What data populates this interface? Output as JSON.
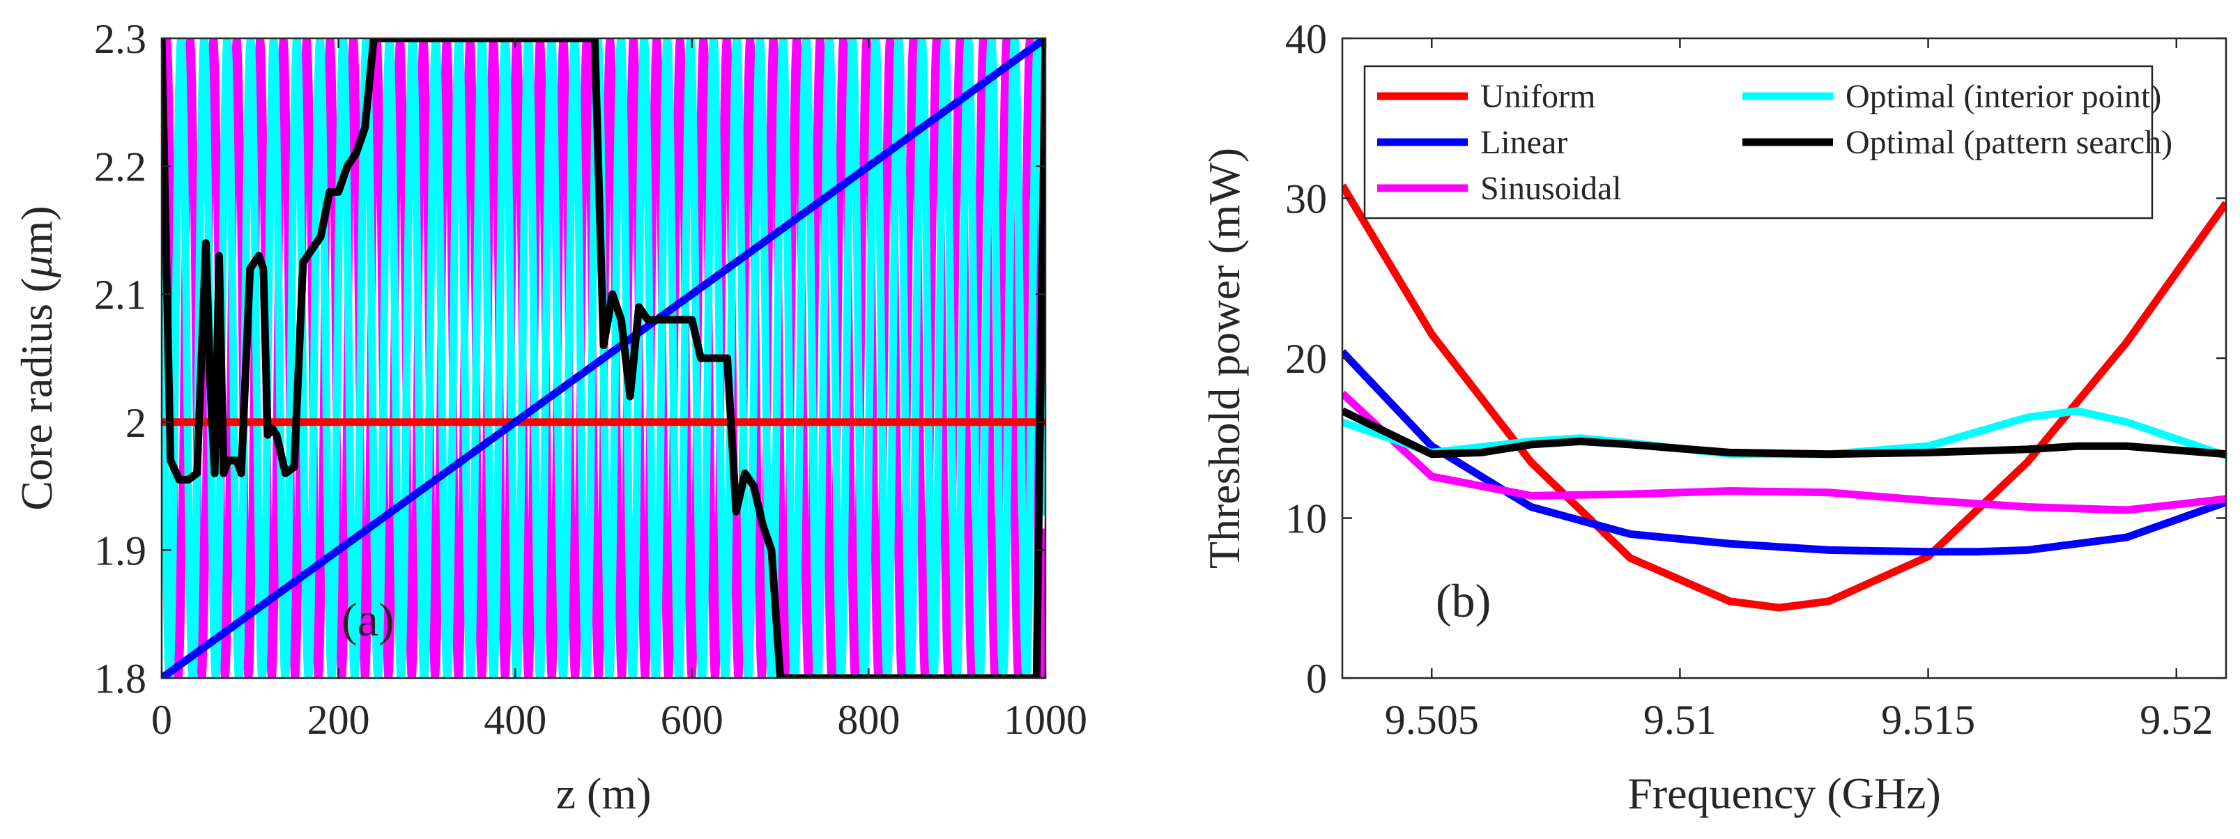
{
  "chart_data": [
    {
      "type": "line",
      "panel_label": "(a)",
      "title": "",
      "xlabel": "z (m)",
      "ylabel_text": "Core radius  (",
      "ylabel_symbol": "μ",
      "ylabel_unit": "m)",
      "xlim": [
        0,
        1000
      ],
      "ylim": [
        1.8,
        2.3
      ],
      "xticks": [
        0,
        200,
        400,
        600,
        800,
        1000
      ],
      "xtick_labels": [
        "0",
        "200",
        "400",
        "600",
        "800",
        "1000"
      ],
      "yticks": [
        1.8,
        1.9,
        2.0,
        2.1,
        2.2,
        2.3
      ],
      "ytick_labels": [
        "1.8",
        "1.9",
        "2",
        "2.1",
        "2.2",
        "2.3"
      ],
      "grid": false,
      "series": [
        {
          "name": "Uniform",
          "color": "#ff0000",
          "x": [
            0,
            1000
          ],
          "y": [
            2.0,
            2.0
          ]
        },
        {
          "name": "Linear",
          "color": "#0000ff",
          "x": [
            0,
            1000
          ],
          "y": [
            1.8,
            2.3
          ]
        },
        {
          "name": "Sinusoidal",
          "color": "#ff00ff",
          "function": "2.05 + 0.25*sin(2*pi*z/26.4 + 0.2)",
          "amplitude": 0.25,
          "offset": 2.05,
          "period": 26.4,
          "phase": 0.2,
          "domain": [
            0,
            1000
          ]
        },
        {
          "name": "Optimal (interior point)",
          "color": "#00ffff",
          "function": "2.05 + 0.25*sin(2*pi*z/26.2 + 2.6)",
          "amplitude": 0.25,
          "offset": 2.05,
          "period": 26.2,
          "phase": 2.6,
          "domain": [
            0,
            1000
          ]
        },
        {
          "name": "Optimal (pattern search)",
          "color": "#000000",
          "x": [
            0,
            10,
            20,
            30,
            40,
            50,
            55,
            60,
            65,
            70,
            75,
            80,
            85,
            90,
            100,
            110,
            115,
            120,
            125,
            130,
            140,
            150,
            160,
            170,
            180,
            190,
            200,
            210,
            220,
            225,
            230,
            240,
            245,
            250,
            255,
            260,
            300,
            350,
            400,
            450,
            490,
            500,
            510,
            520,
            530,
            540,
            550,
            560,
            600,
            610,
            620,
            630,
            640,
            650,
            660,
            670,
            680,
            690,
            700,
            710,
            750,
            800,
            850,
            900,
            950,
            990,
            1000
          ],
          "y": [
            2.3,
            1.97,
            1.955,
            1.955,
            1.96,
            2.14,
            2.03,
            1.96,
            2.13,
            1.96,
            1.97,
            1.97,
            1.97,
            1.96,
            2.12,
            2.13,
            2.12,
            1.99,
            1.995,
            1.99,
            1.96,
            1.965,
            2.125,
            2.135,
            2.145,
            2.18,
            2.18,
            2.2,
            2.21,
            2.22,
            2.23,
            2.3,
            2.3,
            2.3,
            2.3,
            2.3,
            2.3,
            2.3,
            2.3,
            2.3,
            2.3,
            2.06,
            2.1,
            2.08,
            2.02,
            2.09,
            2.08,
            2.08,
            2.08,
            2.05,
            2.05,
            2.05,
            2.05,
            1.93,
            1.96,
            1.95,
            1.92,
            1.9,
            1.8,
            1.8,
            1.8,
            1.8,
            1.8,
            1.8,
            1.8,
            1.8,
            2.3
          ]
        }
      ]
    },
    {
      "type": "line",
      "panel_label": "(b)",
      "title": "",
      "xlabel": "Frequency (GHz)",
      "ylabel": "Threshold power  (mW)",
      "xlim": [
        9.5032,
        9.521
      ],
      "ylim": [
        0,
        40
      ],
      "xticks": [
        9.505,
        9.51,
        9.515,
        9.52
      ],
      "xtick_labels": [
        "9.505",
        "9.51",
        "9.515",
        "9.52"
      ],
      "yticks": [
        0,
        10,
        20,
        30,
        40
      ],
      "ytick_labels": [
        "0",
        "10",
        "20",
        "30",
        "40"
      ],
      "grid": false,
      "legend_position": "top-left",
      "legend": [
        {
          "label": "Uniform",
          "color": "#ff0000"
        },
        {
          "label": "Optimal (interior point)",
          "color": "#00ffff"
        },
        {
          "label": "Linear",
          "color": "#0000ff"
        },
        {
          "label": "Optimal (pattern search)",
          "color": "#000000"
        },
        {
          "label": "Sinusoidal",
          "color": "#ff00ff"
        }
      ],
      "series": [
        {
          "name": "Uniform",
          "color": "#ff0000",
          "x": [
            9.5032,
            9.505,
            9.507,
            9.509,
            9.511,
            9.512,
            9.513,
            9.515,
            9.517,
            9.519,
            9.521
          ],
          "y": [
            30.8,
            21.5,
            13.5,
            7.5,
            4.8,
            4.4,
            4.8,
            7.6,
            13.5,
            21.0,
            29.7
          ]
        },
        {
          "name": "Linear",
          "color": "#0000ff",
          "x": [
            9.5032,
            9.505,
            9.507,
            9.509,
            9.511,
            9.513,
            9.515,
            9.516,
            9.517,
            9.519,
            9.521
          ],
          "y": [
            20.4,
            14.5,
            10.7,
            9.0,
            8.4,
            8.0,
            7.9,
            7.9,
            8.0,
            8.8,
            11.0
          ]
        },
        {
          "name": "Sinusoidal",
          "color": "#ff00ff",
          "x": [
            9.5032,
            9.505,
            9.507,
            9.509,
            9.511,
            9.513,
            9.515,
            9.517,
            9.519,
            9.521
          ],
          "y": [
            17.8,
            12.6,
            11.4,
            11.5,
            11.7,
            11.6,
            11.1,
            10.7,
            10.5,
            11.2
          ]
        },
        {
          "name": "Optimal (interior point)",
          "color": "#00ffff",
          "x": [
            9.5032,
            9.505,
            9.507,
            9.508,
            9.509,
            9.511,
            9.513,
            9.515,
            9.517,
            9.518,
            9.519,
            9.521
          ],
          "y": [
            16.0,
            14.1,
            14.8,
            15.0,
            14.7,
            14.0,
            14.0,
            14.5,
            16.3,
            16.7,
            16.0,
            13.9
          ]
        },
        {
          "name": "Optimal (pattern search)",
          "color": "#000000",
          "x": [
            9.5032,
            9.505,
            9.506,
            9.507,
            9.508,
            9.509,
            9.511,
            9.513,
            9.515,
            9.517,
            9.518,
            9.519,
            9.521
          ],
          "y": [
            16.7,
            14.0,
            14.1,
            14.6,
            14.8,
            14.6,
            14.1,
            14.0,
            14.1,
            14.3,
            14.5,
            14.5,
            14.0
          ]
        }
      ]
    }
  ]
}
